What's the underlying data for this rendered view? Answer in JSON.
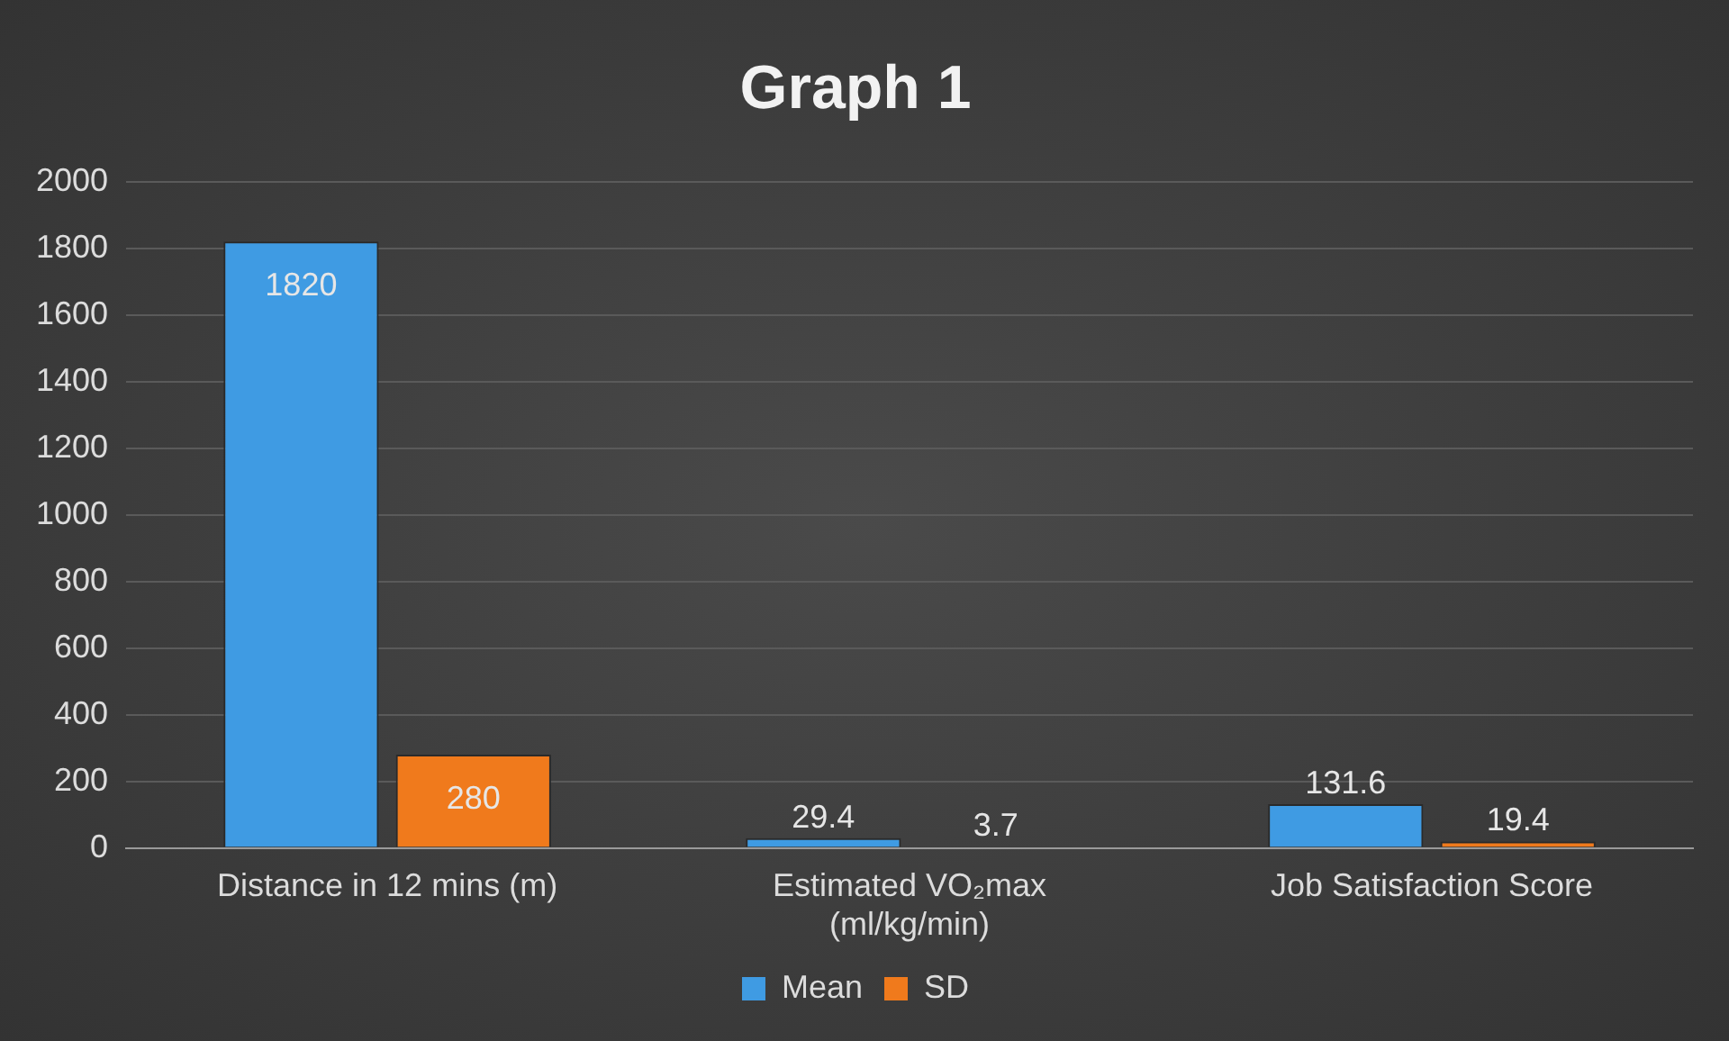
{
  "chart_data": {
    "type": "bar",
    "title": "Graph 1",
    "categories": [
      "Distance in 12 mins (m)",
      "Estimated VO₂max (ml/kg/min)",
      "Job Satisfaction Score"
    ],
    "series": [
      {
        "name": "Mean",
        "color": "#3f9be3",
        "values": [
          1820,
          29.4,
          131.6
        ]
      },
      {
        "name": "SD",
        "color": "#f07a1c",
        "values": [
          280,
          3.7,
          19.4
        ]
      }
    ],
    "ylim": [
      0,
      2000
    ],
    "yticks": [
      0,
      200,
      400,
      600,
      800,
      1000,
      1200,
      1400,
      1600,
      1800,
      2000
    ],
    "grid": "y",
    "legend": "bottom",
    "data_labels": true
  }
}
